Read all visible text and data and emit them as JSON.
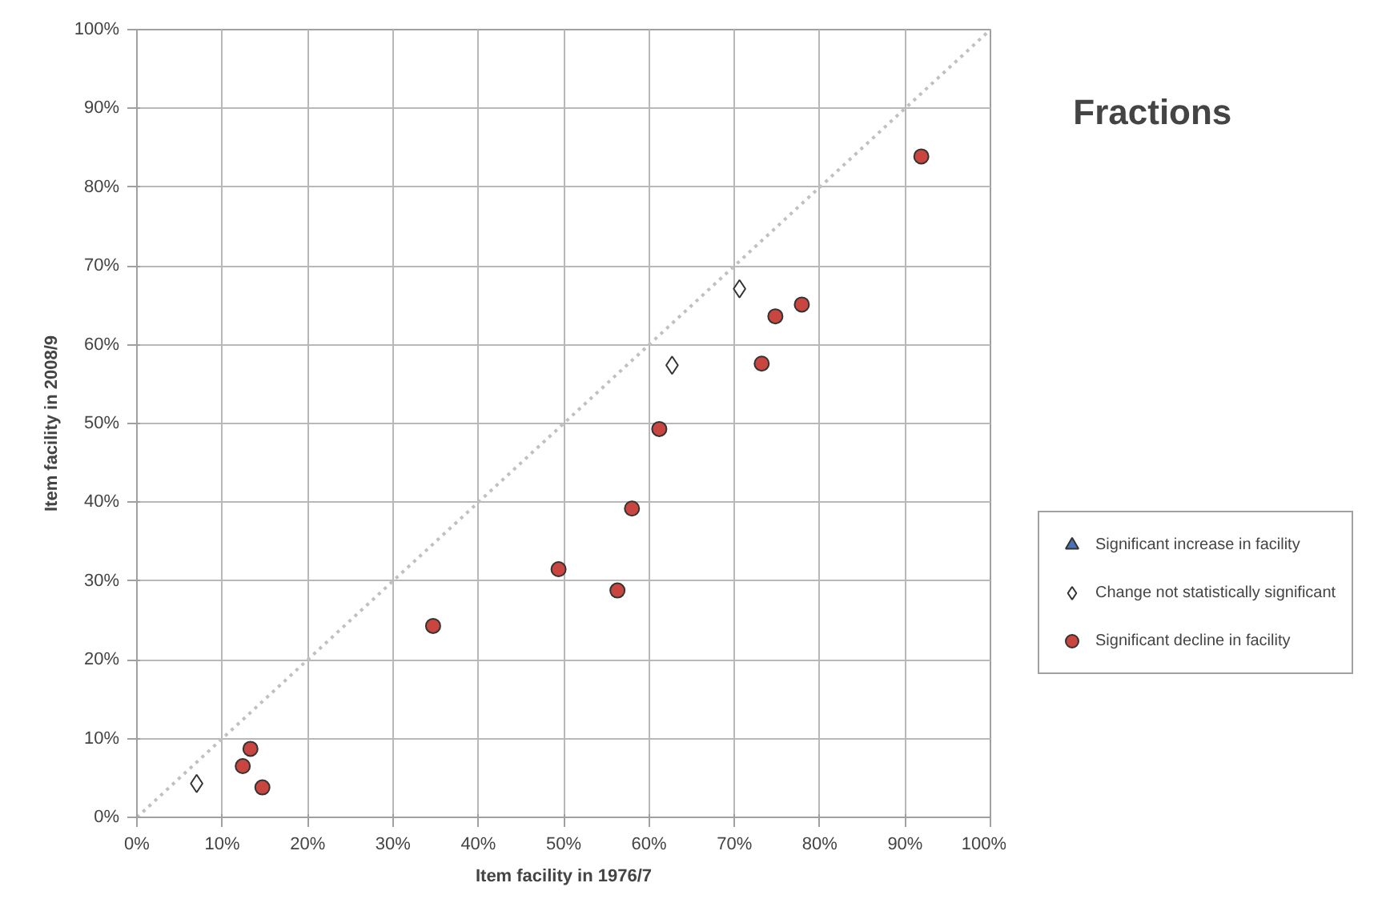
{
  "chart_data": {
    "type": "scatter",
    "title": "Fractions",
    "xlabel": "Item facility in 1976/7",
    "ylabel": "Item facility in 2008/9",
    "xlim": [
      0,
      100
    ],
    "ylim": [
      0,
      100
    ],
    "xticks": [
      {
        "value": 0,
        "label": "0%"
      },
      {
        "value": 10,
        "label": "10%"
      },
      {
        "value": 20,
        "label": "20%"
      },
      {
        "value": 30,
        "label": "30%"
      },
      {
        "value": 40,
        "label": "40%"
      },
      {
        "value": 50,
        "label": "50%"
      },
      {
        "value": 60,
        "label": "60%"
      },
      {
        "value": 70,
        "label": "70%"
      },
      {
        "value": 80,
        "label": "80%"
      },
      {
        "value": 90,
        "label": "90%"
      },
      {
        "value": 100,
        "label": "100%"
      }
    ],
    "yticks": [
      {
        "value": 0,
        "label": "0%"
      },
      {
        "value": 10,
        "label": "10%"
      },
      {
        "value": 20,
        "label": "20%"
      },
      {
        "value": 30,
        "label": "30%"
      },
      {
        "value": 40,
        "label": "40%"
      },
      {
        "value": 50,
        "label": "50%"
      },
      {
        "value": 60,
        "label": "60%"
      },
      {
        "value": 70,
        "label": "70%"
      },
      {
        "value": 80,
        "label": "80%"
      },
      {
        "value": 90,
        "label": "90%"
      },
      {
        "value": 100,
        "label": "100%"
      }
    ],
    "grid": true,
    "legend": "right",
    "series": [
      {
        "type": "line",
        "color": "#c0c0c0",
        "line_style": "dotted",
        "x": [
          0,
          100
        ],
        "values": [
          0,
          100
        ]
      },
      {
        "name": "Significant increase in facility",
        "color": "#4a72b8",
        "marker": "triangle"
      },
      {
        "name": "Change not statistically significant",
        "color": "#ffffff",
        "marker": "diamond",
        "x": [
          7.0,
          62.7,
          70.6
        ],
        "values": [
          4.3,
          57.4,
          67.1
        ]
      },
      {
        "name": "Significant decline in facility",
        "color": "#c9453f",
        "marker": "circle",
        "x": [
          12.4,
          13.3,
          14.7,
          34.7,
          49.4,
          56.3,
          58.0,
          61.2,
          73.2,
          74.8,
          77.9,
          91.9
        ],
        "values": [
          6.5,
          8.7,
          3.8,
          24.3,
          31.5,
          28.8,
          39.2,
          49.3,
          57.6,
          63.6,
          65.1,
          83.9
        ]
      }
    ]
  }
}
